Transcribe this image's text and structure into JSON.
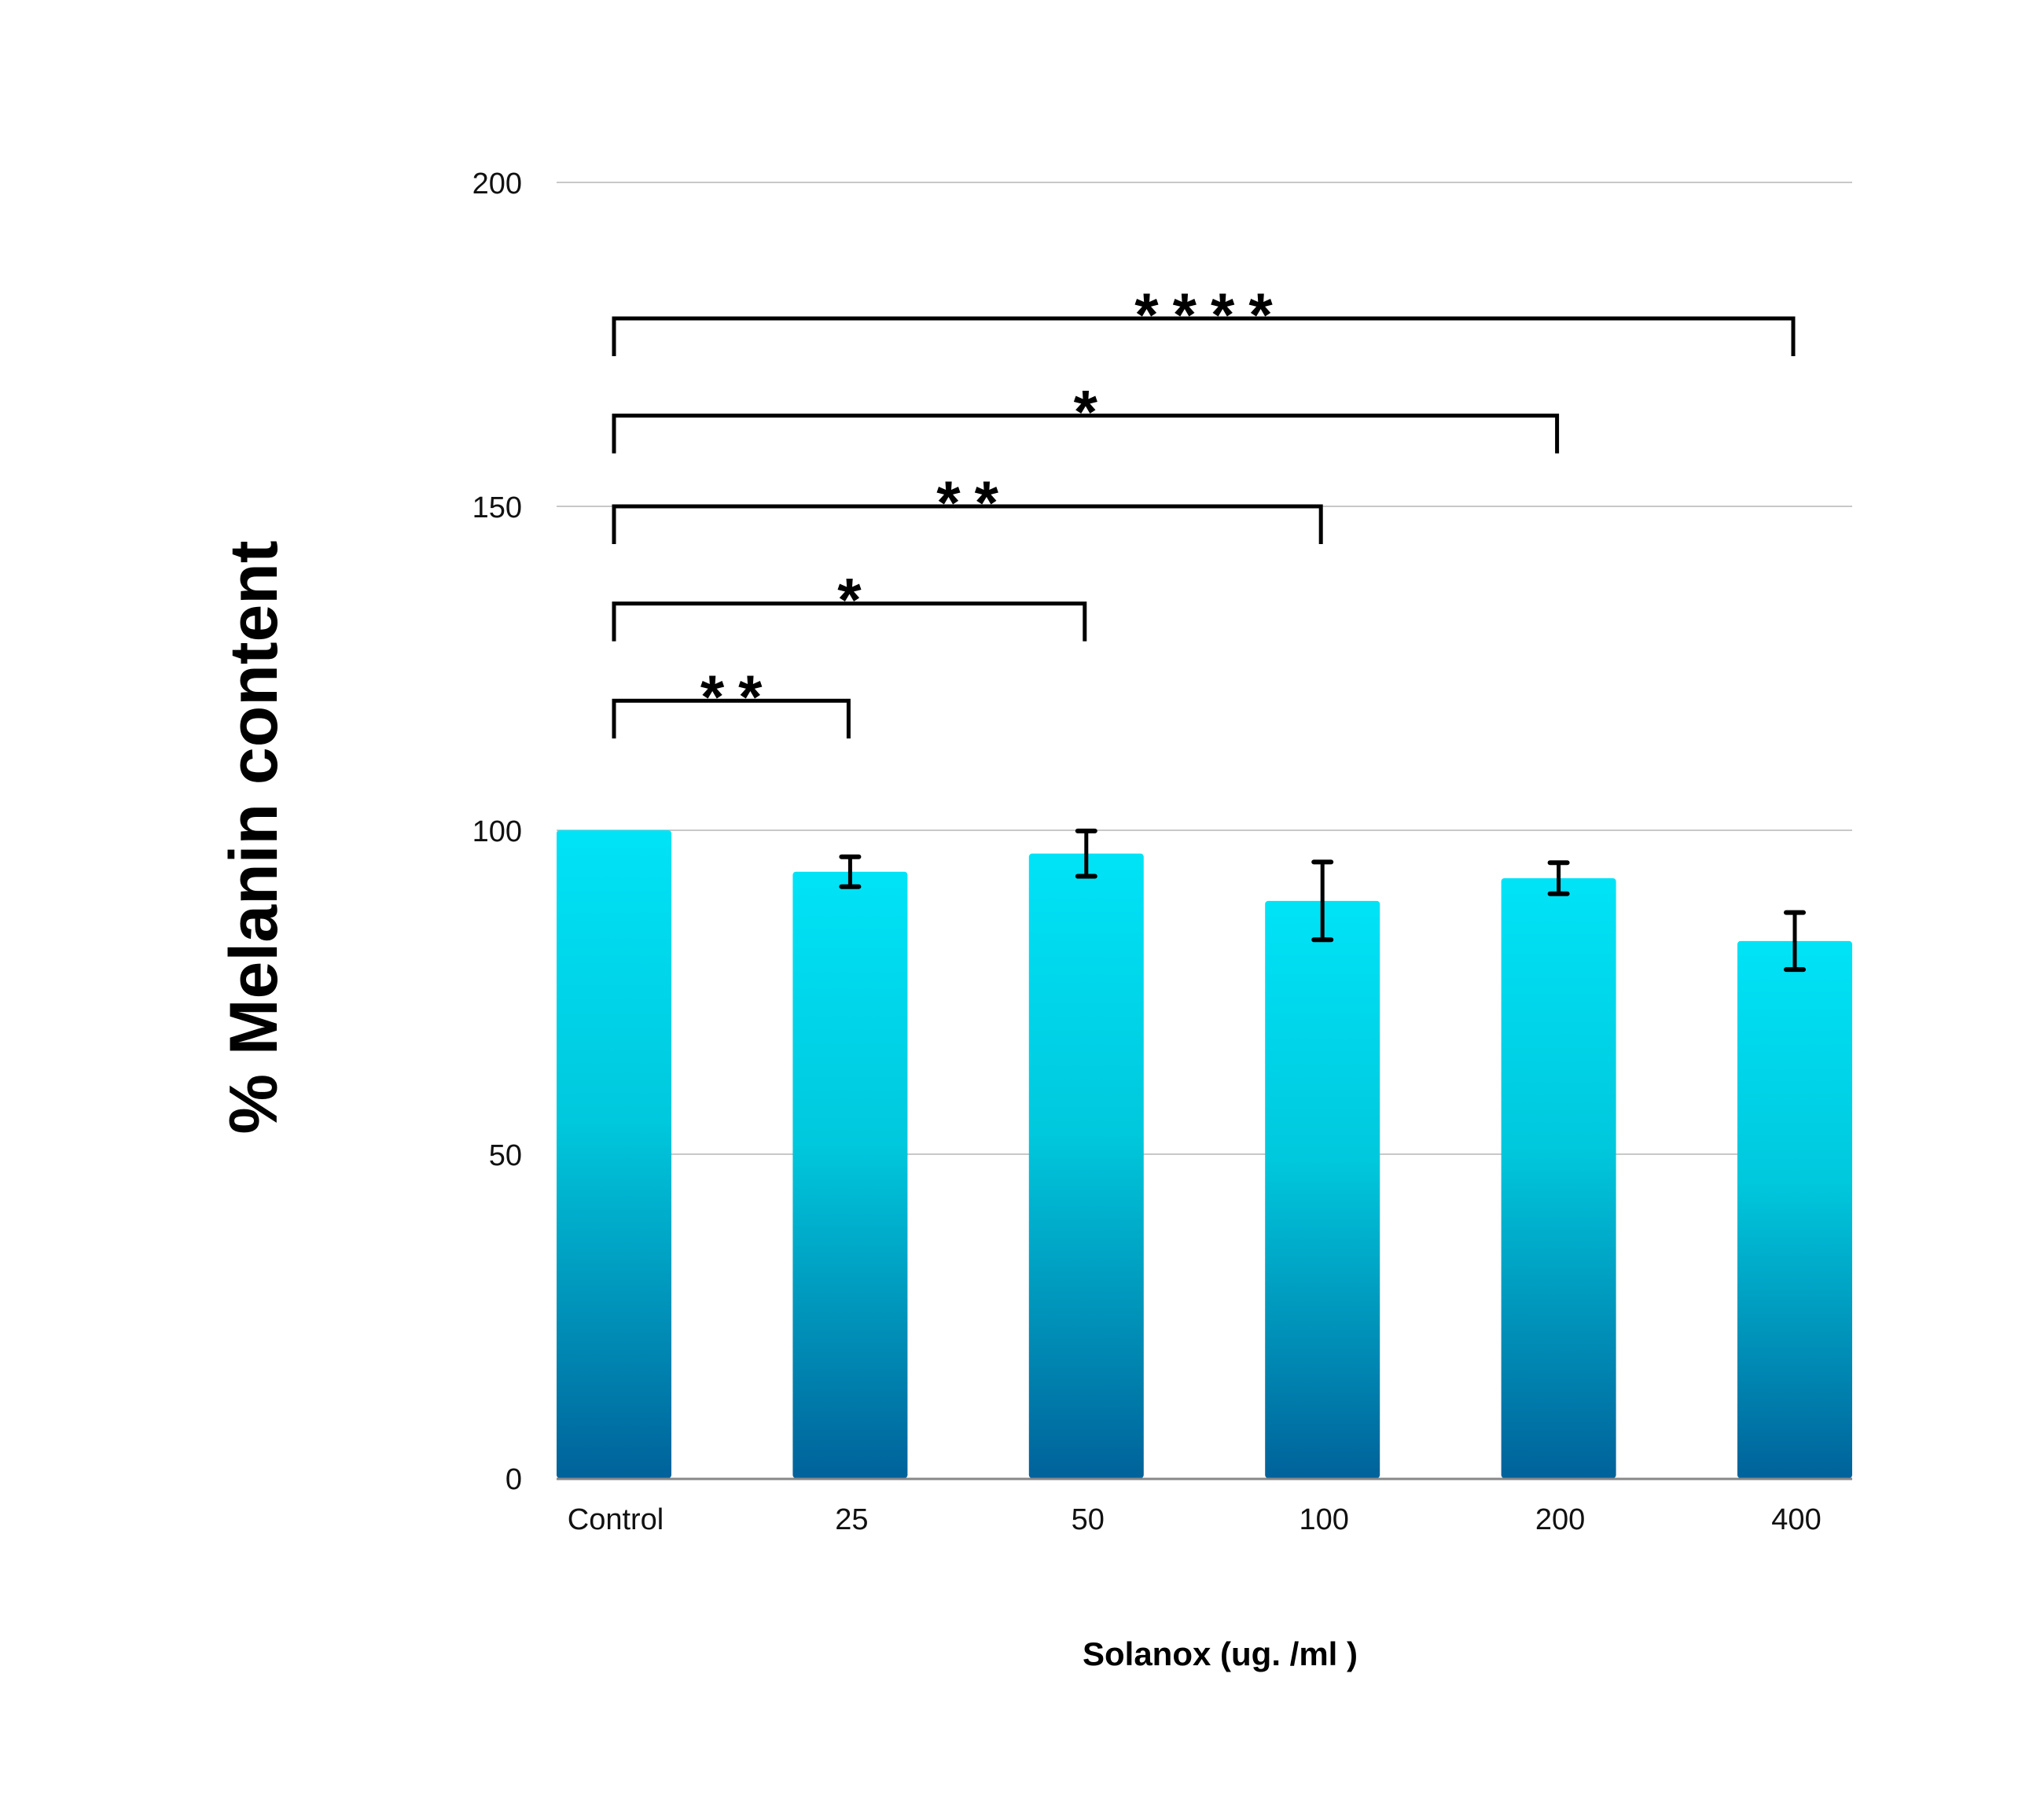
{
  "chart_data": {
    "type": "bar",
    "title": "",
    "xlabel": "Solanox (ug. /ml )",
    "ylabel": "% Melanin content",
    "ylim": [
      0,
      200
    ],
    "yticks": [
      0,
      50,
      100,
      150,
      200
    ],
    "grid": true,
    "legend": "none",
    "categories": [
      "Control",
      "25",
      "50",
      "100",
      "200",
      "400"
    ],
    "series": [
      {
        "name": "% Melanin content",
        "values": [
          100,
          93.6,
          96.4,
          89.1,
          92.6,
          82.9
        ],
        "errors": [
          0,
          2.3,
          3.5,
          6.0,
          2.4,
          4.4
        ]
      }
    ],
    "colors": {
      "bar_top": "#00e3f7",
      "bar_mid": "#00c8dd",
      "bar_bottom": "#00629a",
      "grid": "#c8c8c8",
      "axis": "#888888",
      "ink": "#000000"
    },
    "significance": [
      {
        "from": "Control",
        "to": "25",
        "label": "**",
        "level": 120
      },
      {
        "from": "Control",
        "to": "50",
        "label": "*",
        "level": 135
      },
      {
        "from": "Control",
        "to": "100",
        "label": "**",
        "level": 150
      },
      {
        "from": "Control",
        "to": "200",
        "label": "*",
        "level": 164
      },
      {
        "from": "Control",
        "to": "400",
        "label": "****",
        "level": 179
      }
    ]
  }
}
